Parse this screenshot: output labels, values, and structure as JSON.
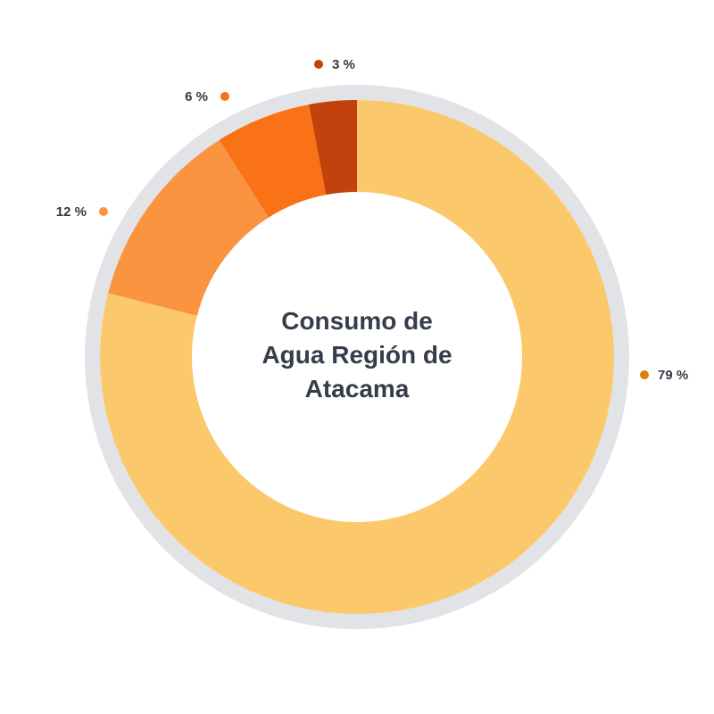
{
  "chart_data": {
    "type": "donut",
    "title": "Consumo de Agua Región de Atacama",
    "values": [
      79,
      12,
      6,
      3
    ],
    "value_labels": [
      "79 %",
      "12 %",
      "6 %",
      "3 %"
    ],
    "colors": [
      "#fbc96b",
      "#fb9441",
      "#f97316",
      "#c2410c"
    ],
    "label_dot_colors": [
      "#d9820a",
      "#fb9441",
      "#f97316",
      "#c2410c"
    ]
  }
}
